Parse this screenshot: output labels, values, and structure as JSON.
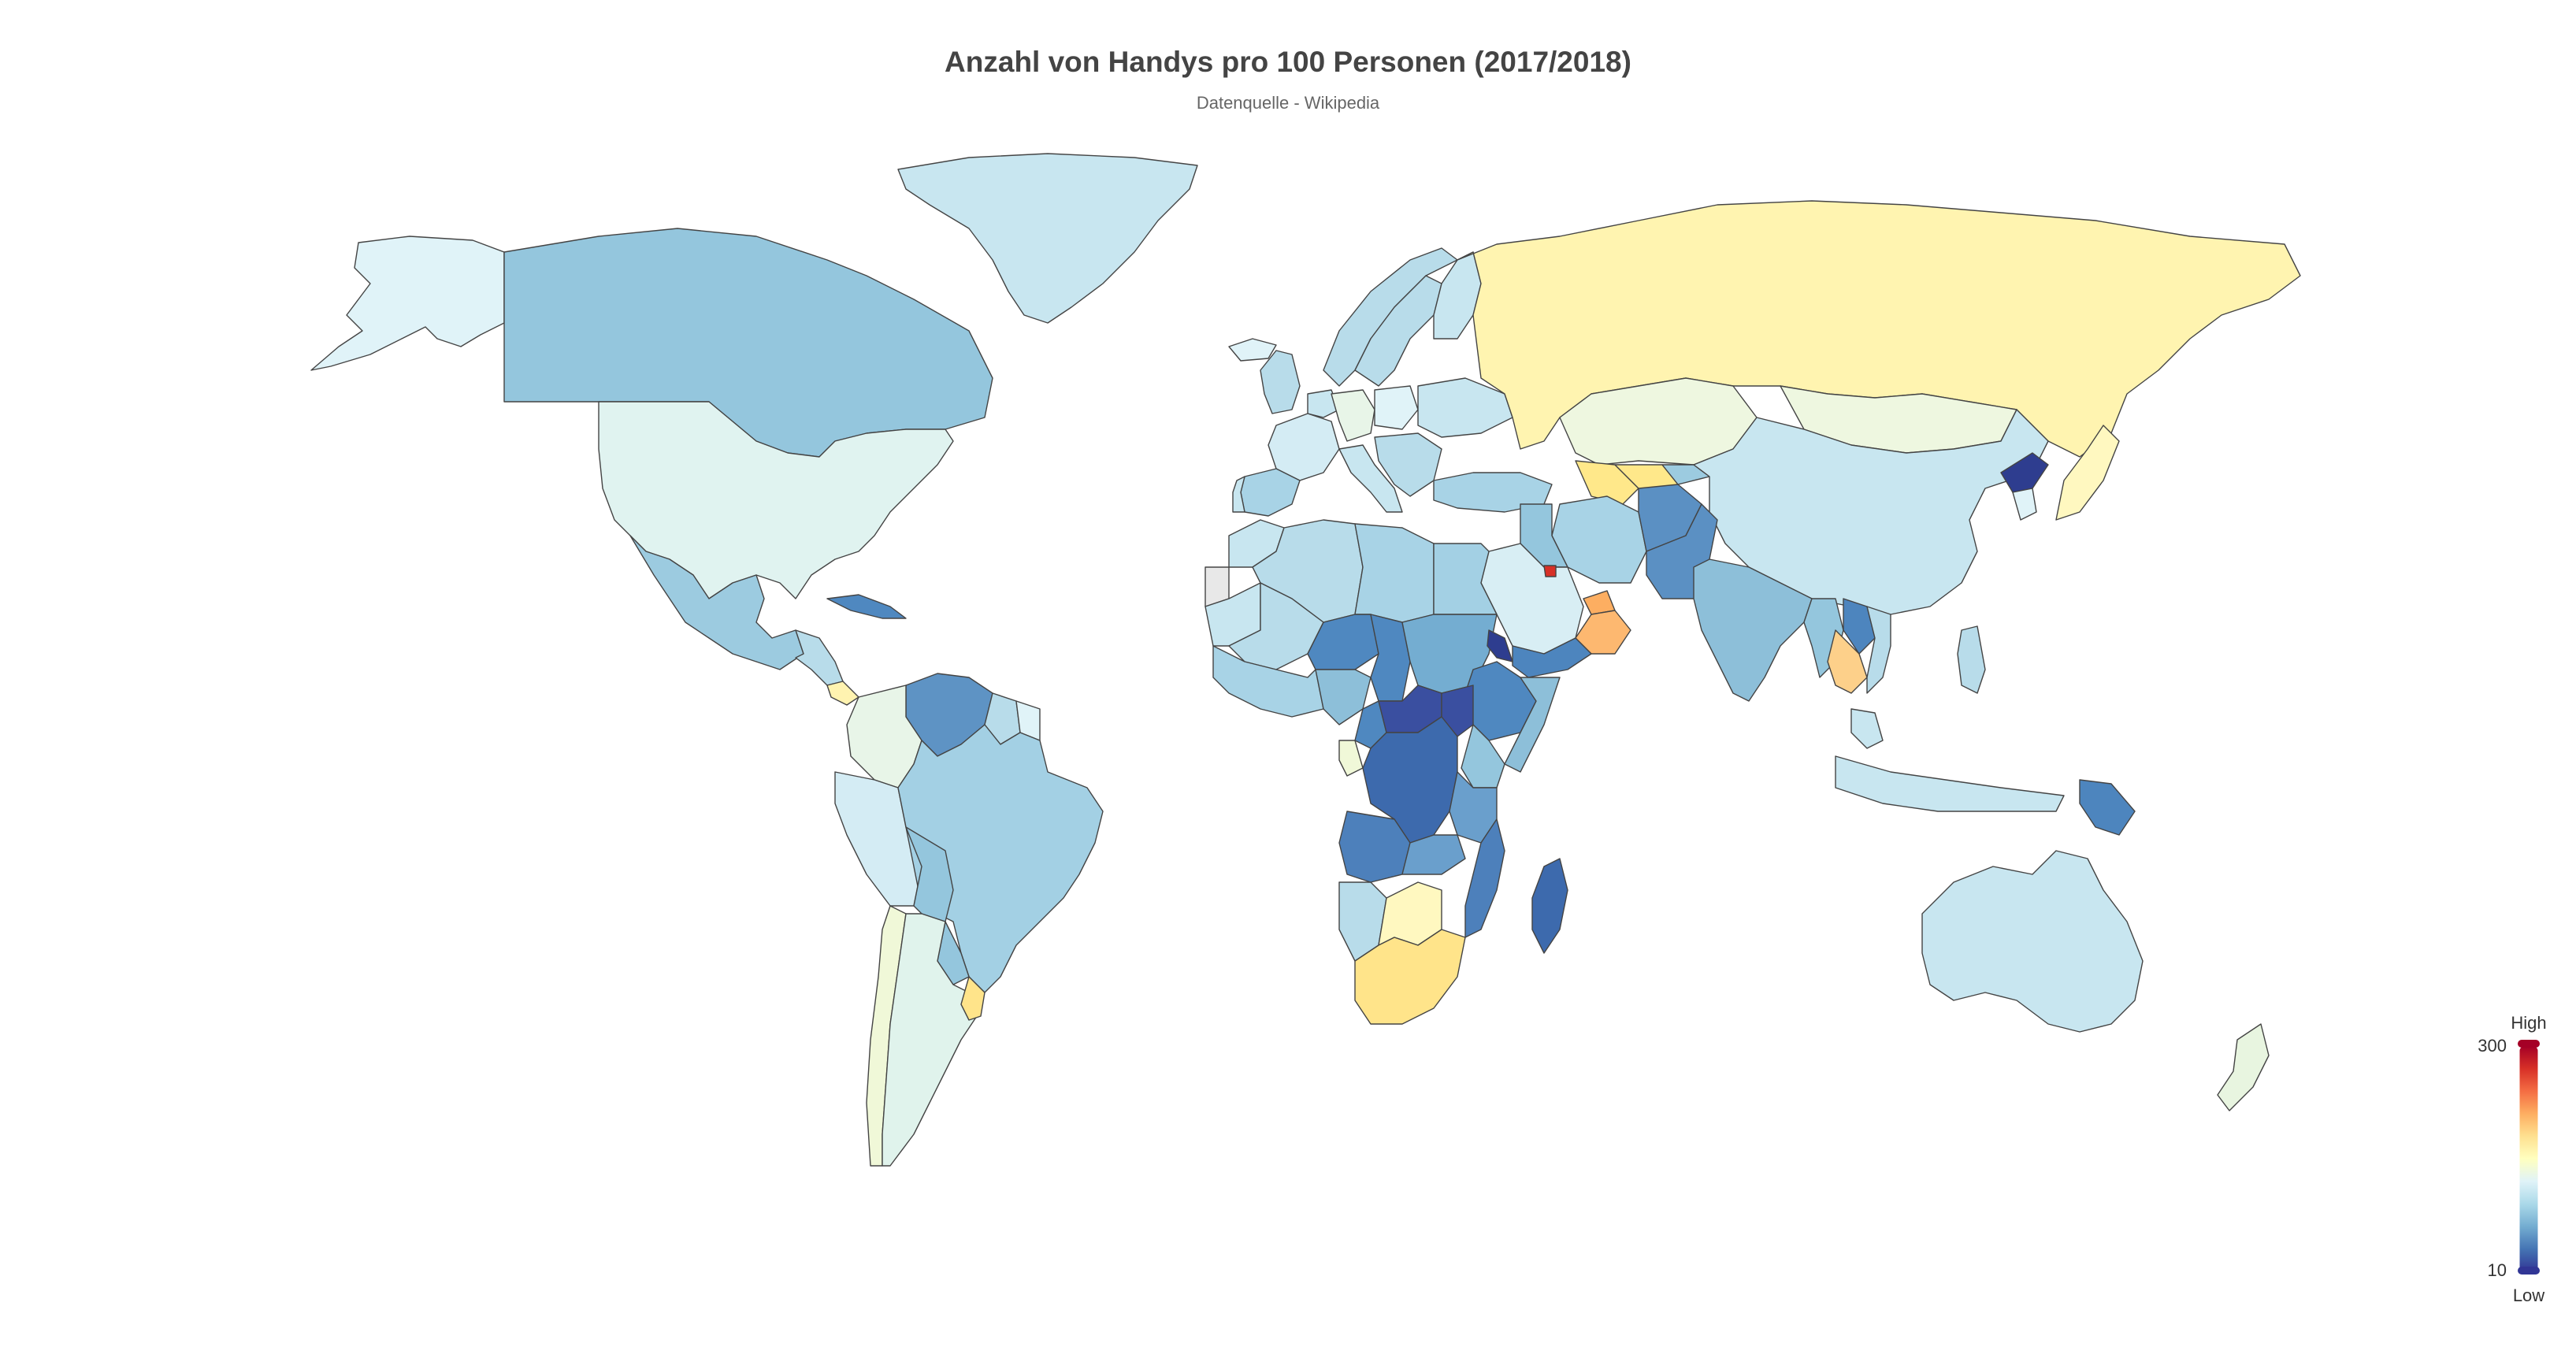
{
  "title": "Anzahl von Handys pro 100 Personen (2017/2018)",
  "subtitle": "Datenquelle - Wikipedia",
  "legend": {
    "high_label": "High",
    "low_label": "Low",
    "max_value": "300",
    "min_value": "10",
    "colors": [
      "#313695",
      "#4575b4",
      "#74add1",
      "#abd9e9",
      "#e0f3f8",
      "#ffffbf",
      "#fee090",
      "#fdae61",
      "#f46d43",
      "#d73027",
      "#a50026"
    ]
  },
  "map_colors": {
    "ocean": "#ffffff",
    "border": "#444444",
    "no_data": "#e8e8e8"
  },
  "regions": [
    {
      "name": "Alaska",
      "color": "#e0f3f8"
    },
    {
      "name": "Canada",
      "color": "#94c6dd"
    },
    {
      "name": "Greenland",
      "color": "#c8e6f0"
    },
    {
      "name": "United States",
      "color": "#e0f3f0"
    },
    {
      "name": "Mexico",
      "color": "#9ccbe0"
    },
    {
      "name": "Cuba",
      "color": "#4f88c0"
    },
    {
      "name": "Central America",
      "color": "#b8dcea"
    },
    {
      "name": "Costa Rica",
      "color": "#fff3b0"
    },
    {
      "name": "Venezuela",
      "color": "#5e93c4"
    },
    {
      "name": "Colombia",
      "color": "#e8f5e8"
    },
    {
      "name": "Guyana",
      "color": "#b8dcea"
    },
    {
      "name": "Suriname",
      "color": "#e0f3f8"
    },
    {
      "name": "Peru",
      "color": "#d4ecf4"
    },
    {
      "name": "Brazil",
      "color": "#a3d0e4"
    },
    {
      "name": "Bolivia",
      "color": "#94c6dd"
    },
    {
      "name": "Paraguay",
      "color": "#94c6dd"
    },
    {
      "name": "Chile",
      "color": "#f0f8d8"
    },
    {
      "name": "Argentina",
      "color": "#e0f3ec"
    },
    {
      "name": "Uruguay",
      "color": "#ffe48a"
    },
    {
      "name": "Iceland",
      "color": "#e0f3f8"
    },
    {
      "name": "Norway",
      "color": "#b8dcea"
    },
    {
      "name": "Sweden",
      "color": "#b8dcea"
    },
    {
      "name": "Finland",
      "color": "#c8e6f0"
    },
    {
      "name": "UK",
      "color": "#b8dcea"
    },
    {
      "name": "Western Europe",
      "color": "#c8e6f0"
    },
    {
      "name": "Spain",
      "color": "#a8d3e6"
    },
    {
      "name": "Portugal",
      "color": "#c8e6f0"
    },
    {
      "name": "France",
      "color": "#d4ecf4"
    },
    {
      "name": "Germany",
      "color": "#e8f5e8"
    },
    {
      "name": "Italy",
      "color": "#c8e6f0"
    },
    {
      "name": "Poland",
      "color": "#e0f3f8"
    },
    {
      "name": "Ukraine",
      "color": "#c8e6f0"
    },
    {
      "name": "Balkans",
      "color": "#b8dcea"
    },
    {
      "name": "Turkey",
      "color": "#a8d3e6"
    },
    {
      "name": "Russia",
      "color": "#fff4b0"
    },
    {
      "name": "Kazakhstan",
      "color": "#eef7e0"
    },
    {
      "name": "Turkmenistan",
      "color": "#ffe88a"
    },
    {
      "name": "Uzbekistan",
      "color": "#ffe88a"
    },
    {
      "name": "Kyrgyzstan",
      "color": "#9ccbe0"
    },
    {
      "name": "Mongolia",
      "color": "#eef7e0"
    },
    {
      "name": "China",
      "color": "#c8e6f0"
    },
    {
      "name": "North Korea",
      "color": "#2e3d8f"
    },
    {
      "name": "South Korea",
      "color": "#e0f3f8"
    },
    {
      "name": "Japan",
      "color": "#fff8c0"
    },
    {
      "name": "Afghanistan",
      "color": "#5b90c3"
    },
    {
      "name": "Pakistan",
      "color": "#5b90c3"
    },
    {
      "name": "Iran",
      "color": "#a8d3e6"
    },
    {
      "name": "Iraq",
      "color": "#94c6dd"
    },
    {
      "name": "Saudi Arabia",
      "color": "#d8eef4"
    },
    {
      "name": "Kuwait",
      "color": "#d73027"
    },
    {
      "name": "UAE",
      "color": "#fdae61"
    },
    {
      "name": "Oman",
      "color": "#fdb870"
    },
    {
      "name": "Yemen",
      "color": "#4d85be"
    },
    {
      "name": "India",
      "color": "#8dbfd9"
    },
    {
      "name": "Myanmar",
      "color": "#94c6dd"
    },
    {
      "name": "Laos",
      "color": "#4d85be"
    },
    {
      "name": "Thailand",
      "color": "#fdd08a"
    },
    {
      "name": "Vietnam",
      "color": "#b8dcea"
    },
    {
      "name": "Malaysia",
      "color": "#c8e6f0"
    },
    {
      "name": "Indonesia",
      "color": "#c8e6f0"
    },
    {
      "name": "Philippines",
      "color": "#b8dcea"
    },
    {
      "name": "Papua New Guinea",
      "color": "#4d85be"
    },
    {
      "name": "Australia",
      "color": "#c8e6f0"
    },
    {
      "name": "New Zealand",
      "color": "#e8f5e0"
    },
    {
      "name": "Morocco",
      "color": "#c8e6f0"
    },
    {
      "name": "Algeria",
      "color": "#b8dcea"
    },
    {
      "name": "Libya",
      "color": "#a8d3e6"
    },
    {
      "name": "Egypt",
      "color": "#a3d0e4"
    },
    {
      "name": "Western Sahara",
      "color": "#e8e8e8"
    },
    {
      "name": "Mauritania",
      "color": "#c8e6f0"
    },
    {
      "name": "Mali",
      "color": "#b8dcea"
    },
    {
      "name": "Niger",
      "color": "#4f88c0"
    },
    {
      "name": "Chad",
      "color": "#4f88c0"
    },
    {
      "name": "Sudan",
      "color": "#74add1"
    },
    {
      "name": "Eritrea",
      "color": "#2e3d8f"
    },
    {
      "name": "Ethiopia",
      "color": "#4f88c0"
    },
    {
      "name": "Somalia",
      "color": "#8dbfd9"
    },
    {
      "name": "West Africa",
      "color": "#a8d3e6"
    },
    {
      "name": "Nigeria",
      "color": "#8dbfd9"
    },
    {
      "name": "Cameroon",
      "color": "#4f88c0"
    },
    {
      "name": "Central African Republic",
      "color": "#3a4fa0"
    },
    {
      "name": "South Sudan",
      "color": "#3a4fa0"
    },
    {
      "name": "DR Congo",
      "color": "#3d6aad"
    },
    {
      "name": "Gabon",
      "color": "#f0f8d8"
    },
    {
      "name": "Kenya",
      "color": "#94c6dd"
    },
    {
      "name": "Tanzania",
      "color": "#6a9fcc"
    },
    {
      "name": "Angola",
      "color": "#4d80bb"
    },
    {
      "name": "Zambia",
      "color": "#6a9fcc"
    },
    {
      "name": "Mozambique",
      "color": "#4d80bb"
    },
    {
      "name": "Namibia",
      "color": "#b8dcea"
    },
    {
      "name": "Botswana",
      "color": "#fff8c0"
    },
    {
      "name": "South Africa",
      "color": "#ffe48a"
    },
    {
      "name": "Madagascar",
      "color": "#3d6aad"
    }
  ]
}
